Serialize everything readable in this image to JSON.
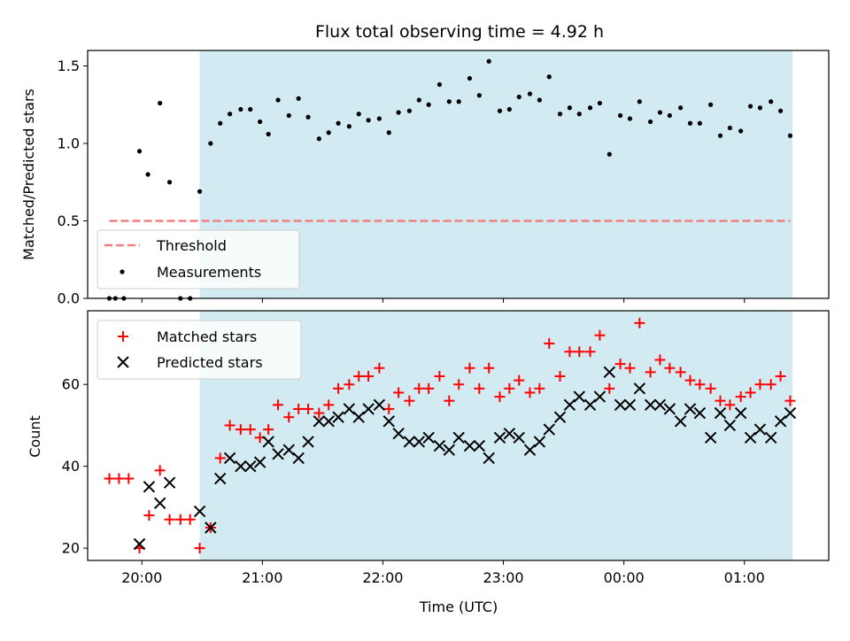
{
  "chart_data": [
    {
      "type": "scatter",
      "title": "Flux total observing time = 4.92 h",
      "xlabel": "",
      "ylabel": "Matched/Predicted stars",
      "ylim": [
        0,
        1.6
      ],
      "yticks": [
        "0.0",
        "0.5",
        "1.0",
        "1.5"
      ],
      "xlim_hours": [
        19.55,
        25.7
      ],
      "xticks": [
        "20:00",
        "21:00",
        "22:00",
        "23:00",
        "00:00",
        "01:00"
      ],
      "shaded_region_hours": [
        20.48,
        25.4
      ],
      "shaded_color": "#add8e6",
      "legend": {
        "placement": "lower-left",
        "entries": [
          "Threshold",
          "Measurements"
        ]
      },
      "threshold": {
        "name": "Threshold",
        "value": 0.5,
        "x_range_hours": [
          19.73,
          25.38
        ],
        "color": "#f08080",
        "style": "dashed"
      },
      "series": [
        {
          "name": "Measurements",
          "color": "#000000",
          "marker": "dot",
          "points": [
            [
              19.73,
              0.0
            ],
            [
              19.78,
              0.0
            ],
            [
              19.85,
              0.0
            ],
            [
              19.98,
              0.95
            ],
            [
              20.05,
              0.8
            ],
            [
              20.15,
              1.26
            ],
            [
              20.23,
              0.75
            ],
            [
              20.32,
              0.0
            ],
            [
              20.4,
              0.0
            ],
            [
              20.48,
              0.69
            ],
            [
              20.57,
              1.0
            ],
            [
              20.65,
              1.13
            ],
            [
              20.73,
              1.19
            ],
            [
              20.82,
              1.22
            ],
            [
              20.9,
              1.22
            ],
            [
              20.98,
              1.14
            ],
            [
              21.05,
              1.06
            ],
            [
              21.13,
              1.28
            ],
            [
              21.22,
              1.18
            ],
            [
              21.3,
              1.29
            ],
            [
              21.38,
              1.17
            ],
            [
              21.47,
              1.03
            ],
            [
              21.55,
              1.07
            ],
            [
              21.63,
              1.13
            ],
            [
              21.72,
              1.11
            ],
            [
              21.8,
              1.19
            ],
            [
              21.88,
              1.15
            ],
            [
              21.97,
              1.16
            ],
            [
              22.05,
              1.07
            ],
            [
              22.13,
              1.2
            ],
            [
              22.22,
              1.21
            ],
            [
              22.3,
              1.28
            ],
            [
              22.38,
              1.25
            ],
            [
              22.47,
              1.38
            ],
            [
              22.55,
              1.27
            ],
            [
              22.63,
              1.27
            ],
            [
              22.72,
              1.42
            ],
            [
              22.8,
              1.31
            ],
            [
              22.88,
              1.53
            ],
            [
              22.97,
              1.21
            ],
            [
              23.05,
              1.22
            ],
            [
              23.13,
              1.3
            ],
            [
              23.22,
              1.32
            ],
            [
              23.3,
              1.28
            ],
            [
              23.38,
              1.43
            ],
            [
              23.47,
              1.19
            ],
            [
              23.55,
              1.23
            ],
            [
              23.63,
              1.19
            ],
            [
              23.72,
              1.23
            ],
            [
              23.8,
              1.26
            ],
            [
              23.88,
              0.93
            ],
            [
              23.97,
              1.18
            ],
            [
              24.05,
              1.16
            ],
            [
              24.13,
              1.27
            ],
            [
              24.22,
              1.14
            ],
            [
              24.3,
              1.2
            ],
            [
              24.38,
              1.18
            ],
            [
              24.47,
              1.23
            ],
            [
              24.55,
              1.13
            ],
            [
              24.63,
              1.13
            ],
            [
              24.72,
              1.25
            ],
            [
              24.8,
              1.05
            ],
            [
              24.88,
              1.1
            ],
            [
              24.97,
              1.08
            ],
            [
              25.05,
              1.24
            ],
            [
              25.13,
              1.23
            ],
            [
              25.22,
              1.27
            ],
            [
              25.3,
              1.21
            ],
            [
              25.38,
              1.05
            ]
          ]
        }
      ]
    },
    {
      "type": "scatter",
      "title": "",
      "xlabel": "Time (UTC)",
      "ylabel": "Count",
      "ylim": [
        17,
        78
      ],
      "yticks": [
        "20",
        "40",
        "60"
      ],
      "xlim_hours": [
        19.55,
        25.7
      ],
      "xticks": [
        "20:00",
        "21:00",
        "22:00",
        "23:00",
        "00:00",
        "01:00"
      ],
      "shaded_region_hours": [
        20.48,
        25.4
      ],
      "shaded_color": "#add8e6",
      "legend": {
        "placement": "upper-left",
        "entries": [
          "Matched stars",
          "Predicted stars"
        ]
      },
      "series": [
        {
          "name": "Matched stars",
          "color": "#ff0000",
          "marker": "plus",
          "points": [
            [
              19.73,
              37
            ],
            [
              19.81,
              37
            ],
            [
              19.89,
              37
            ],
            [
              19.98,
              20
            ],
            [
              20.06,
              28
            ],
            [
              20.15,
              39
            ],
            [
              20.23,
              27
            ],
            [
              20.32,
              27
            ],
            [
              20.4,
              27
            ],
            [
              20.48,
              20
            ],
            [
              20.57,
              25
            ],
            [
              20.65,
              42
            ],
            [
              20.73,
              50
            ],
            [
              20.82,
              49
            ],
            [
              20.9,
              49
            ],
            [
              20.98,
              47
            ],
            [
              21.05,
              49
            ],
            [
              21.13,
              55
            ],
            [
              21.22,
              52
            ],
            [
              21.3,
              54
            ],
            [
              21.38,
              54
            ],
            [
              21.47,
              53
            ],
            [
              21.55,
              55
            ],
            [
              21.63,
              59
            ],
            [
              21.72,
              60
            ],
            [
              21.8,
              62
            ],
            [
              21.88,
              62
            ],
            [
              21.97,
              64
            ],
            [
              22.05,
              54
            ],
            [
              22.13,
              58
            ],
            [
              22.22,
              56
            ],
            [
              22.3,
              59
            ],
            [
              22.38,
              59
            ],
            [
              22.47,
              62
            ],
            [
              22.55,
              56
            ],
            [
              22.63,
              60
            ],
            [
              22.72,
              64
            ],
            [
              22.8,
              59
            ],
            [
              22.88,
              64
            ],
            [
              22.97,
              57
            ],
            [
              23.05,
              59
            ],
            [
              23.13,
              61
            ],
            [
              23.22,
              58
            ],
            [
              23.3,
              59
            ],
            [
              23.38,
              70
            ],
            [
              23.47,
              62
            ],
            [
              23.55,
              68
            ],
            [
              23.63,
              68
            ],
            [
              23.72,
              68
            ],
            [
              23.8,
              72
            ],
            [
              23.88,
              59
            ],
            [
              23.97,
              65
            ],
            [
              24.05,
              64
            ],
            [
              24.13,
              75
            ],
            [
              24.22,
              63
            ],
            [
              24.3,
              66
            ],
            [
              24.38,
              64
            ],
            [
              24.47,
              63
            ],
            [
              24.55,
              61
            ],
            [
              24.63,
              60
            ],
            [
              24.72,
              59
            ],
            [
              24.8,
              56
            ],
            [
              24.88,
              55
            ],
            [
              24.97,
              57
            ],
            [
              25.05,
              58
            ],
            [
              25.13,
              60
            ],
            [
              25.22,
              60
            ],
            [
              25.3,
              62
            ],
            [
              25.38,
              56
            ]
          ]
        },
        {
          "name": "Predicted stars",
          "color": "#000000",
          "marker": "x",
          "points": [
            [
              19.98,
              21
            ],
            [
              20.06,
              35
            ],
            [
              20.15,
              31
            ],
            [
              20.23,
              36
            ],
            [
              20.48,
              29
            ],
            [
              20.57,
              25
            ],
            [
              20.65,
              37
            ],
            [
              20.73,
              42
            ],
            [
              20.82,
              40
            ],
            [
              20.9,
              40
            ],
            [
              20.98,
              41
            ],
            [
              21.05,
              46
            ],
            [
              21.13,
              43
            ],
            [
              21.22,
              44
            ],
            [
              21.3,
              42
            ],
            [
              21.38,
              46
            ],
            [
              21.47,
              51
            ],
            [
              21.55,
              51
            ],
            [
              21.63,
              52
            ],
            [
              21.72,
              54
            ],
            [
              21.8,
              52
            ],
            [
              21.88,
              54
            ],
            [
              21.97,
              55
            ],
            [
              22.05,
              51
            ],
            [
              22.13,
              48
            ],
            [
              22.22,
              46
            ],
            [
              22.3,
              46
            ],
            [
              22.38,
              47
            ],
            [
              22.47,
              45
            ],
            [
              22.55,
              44
            ],
            [
              22.63,
              47
            ],
            [
              22.72,
              45
            ],
            [
              22.8,
              45
            ],
            [
              22.88,
              42
            ],
            [
              22.97,
              47
            ],
            [
              23.05,
              48
            ],
            [
              23.13,
              47
            ],
            [
              23.22,
              44
            ],
            [
              23.3,
              46
            ],
            [
              23.38,
              49
            ],
            [
              23.47,
              52
            ],
            [
              23.55,
              55
            ],
            [
              23.63,
              57
            ],
            [
              23.72,
              55
            ],
            [
              23.8,
              57
            ],
            [
              23.88,
              63
            ],
            [
              23.97,
              55
            ],
            [
              24.05,
              55
            ],
            [
              24.13,
              59
            ],
            [
              24.22,
              55
            ],
            [
              24.3,
              55
            ],
            [
              24.38,
              54
            ],
            [
              24.47,
              51
            ],
            [
              24.55,
              54
            ],
            [
              24.63,
              53
            ],
            [
              24.72,
              47
            ],
            [
              24.8,
              53
            ],
            [
              24.88,
              50
            ],
            [
              24.97,
              53
            ],
            [
              25.05,
              47
            ],
            [
              25.13,
              49
            ],
            [
              25.22,
              47
            ],
            [
              25.3,
              51
            ],
            [
              25.38,
              53
            ]
          ]
        }
      ]
    }
  ]
}
